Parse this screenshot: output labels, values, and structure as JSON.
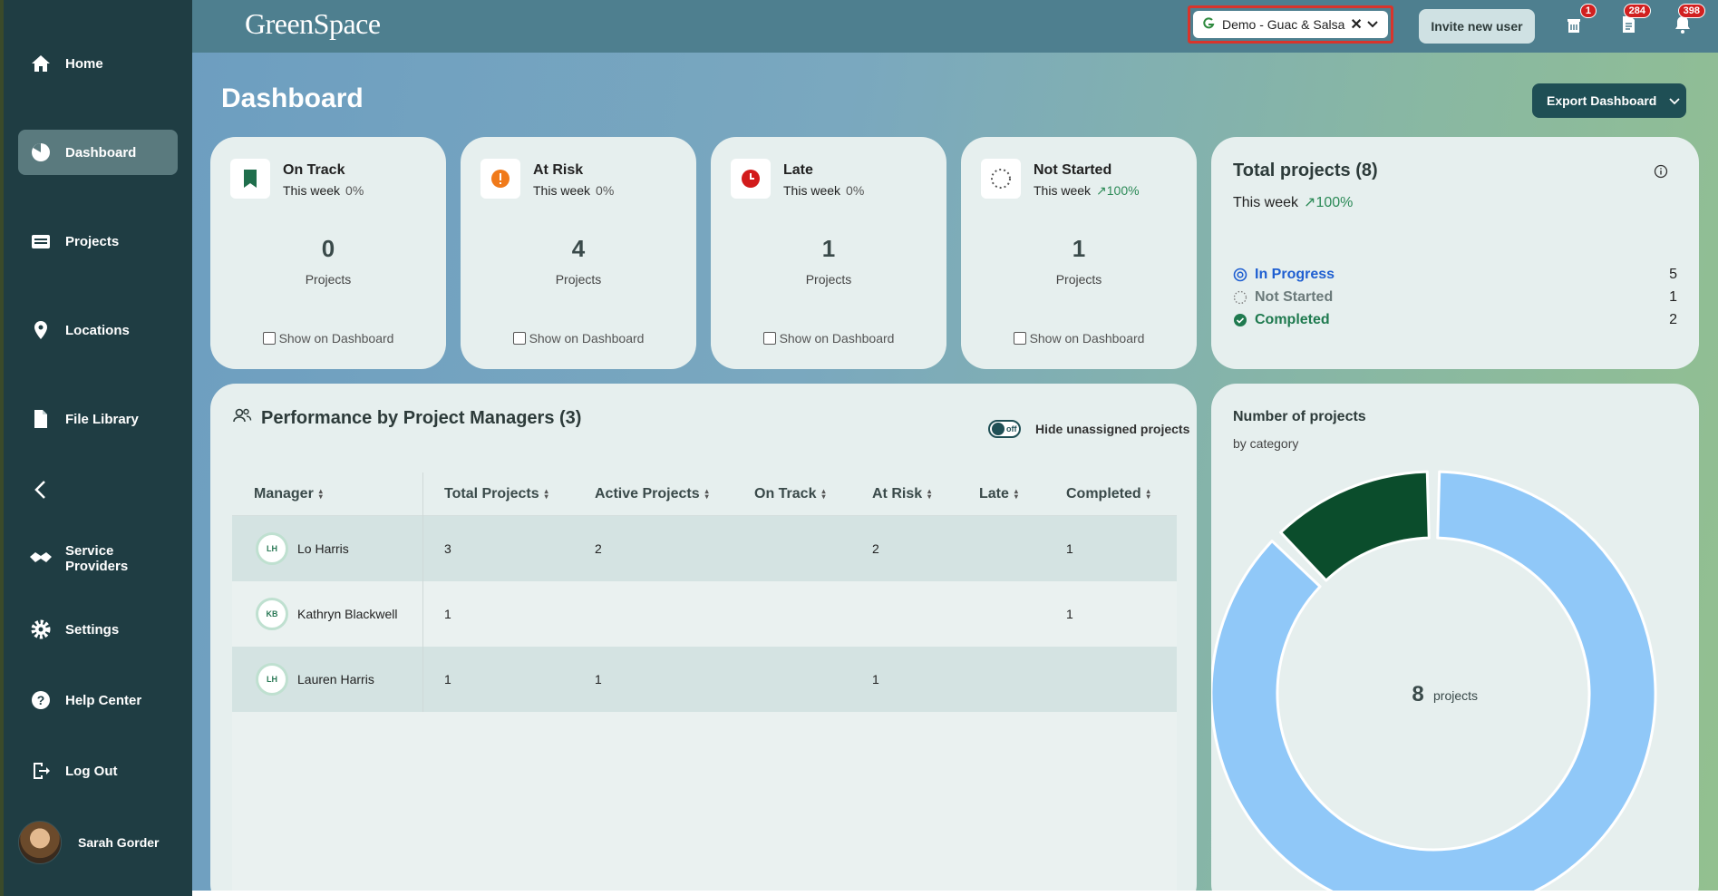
{
  "sidebar": {
    "items": [
      {
        "label": "Home",
        "icon": "home-icon"
      },
      {
        "label": "Dashboard",
        "icon": "dashboard-icon"
      },
      {
        "label": "Projects",
        "icon": "projects-icon"
      },
      {
        "label": "Locations",
        "icon": "location-pin-icon"
      },
      {
        "label": "File Library",
        "icon": "file-icon"
      },
      {
        "label": "Service Providers",
        "icon": "handshake-icon"
      },
      {
        "label": "Settings",
        "icon": "gear-icon"
      },
      {
        "label": "Help Center",
        "icon": "help-icon"
      },
      {
        "label": "Log Out",
        "icon": "logout-icon"
      }
    ],
    "user_name": "Sarah Gorder"
  },
  "header": {
    "logo": "GreenSpace",
    "org_selector": "Demo - Guac & Salsa",
    "invite_label": "Invite new user",
    "badges": {
      "archive": "1",
      "documents": "284",
      "notifications": "398"
    }
  },
  "dashboard": {
    "title": "Dashboard",
    "export_label": "Export Dashboard"
  },
  "status_cards": [
    {
      "title": "On Track",
      "week_label": "This week",
      "pct": "0%",
      "count": "0",
      "unit": "Projects",
      "show_label": "Show on Dashboard"
    },
    {
      "title": "At Risk",
      "week_label": "This week",
      "pct": "0%",
      "count": "4",
      "unit": "Projects",
      "show_label": "Show on Dashboard"
    },
    {
      "title": "Late",
      "week_label": "This week",
      "pct": "0%",
      "count": "1",
      "unit": "Projects",
      "show_label": "Show on Dashboard"
    },
    {
      "title": "Not Started",
      "week_label": "This week",
      "pct": "↗100%",
      "count": "1",
      "unit": "Projects",
      "show_label": "Show on Dashboard"
    }
  ],
  "total_projects": {
    "title": "Total projects (8)",
    "week_label": "This week",
    "pct": "↗100%",
    "rows": [
      {
        "label": "In Progress",
        "count": "5",
        "color": "#1f5fd1"
      },
      {
        "label": "Not Started",
        "count": "1",
        "color": "#6b7a7a"
      },
      {
        "label": "Completed",
        "count": "2",
        "color": "#1f7a4f"
      }
    ]
  },
  "performance": {
    "title": "Performance by Project Managers (3)",
    "toggle_state": "off",
    "toggle_label": "Hide unassigned projects",
    "columns": [
      "Manager",
      "Total Projects",
      "Active Projects",
      "On Track",
      "At Risk",
      "Late",
      "Completed"
    ],
    "rows": [
      {
        "initials": "LH",
        "name": "Lo Harris",
        "total": "3",
        "active": "2",
        "on_track": "",
        "at_risk": "2",
        "late": "",
        "completed": "1"
      },
      {
        "initials": "KB",
        "name": "Kathryn Blackwell",
        "total": "1",
        "active": "",
        "on_track": "",
        "at_risk": "",
        "late": "",
        "completed": "1"
      },
      {
        "initials": "LH",
        "name": "Lauren Harris",
        "total": "1",
        "active": "1",
        "on_track": "",
        "at_risk": "1",
        "late": "",
        "completed": ""
      }
    ]
  },
  "chart_data": {
    "type": "pie",
    "title": "Number of projects",
    "subtitle": "by category",
    "center_value": "8",
    "center_label": "projects",
    "slices": [
      {
        "value": 7,
        "color": "#90c8f8"
      },
      {
        "value": 1,
        "color": "#0b4d2c"
      }
    ]
  }
}
